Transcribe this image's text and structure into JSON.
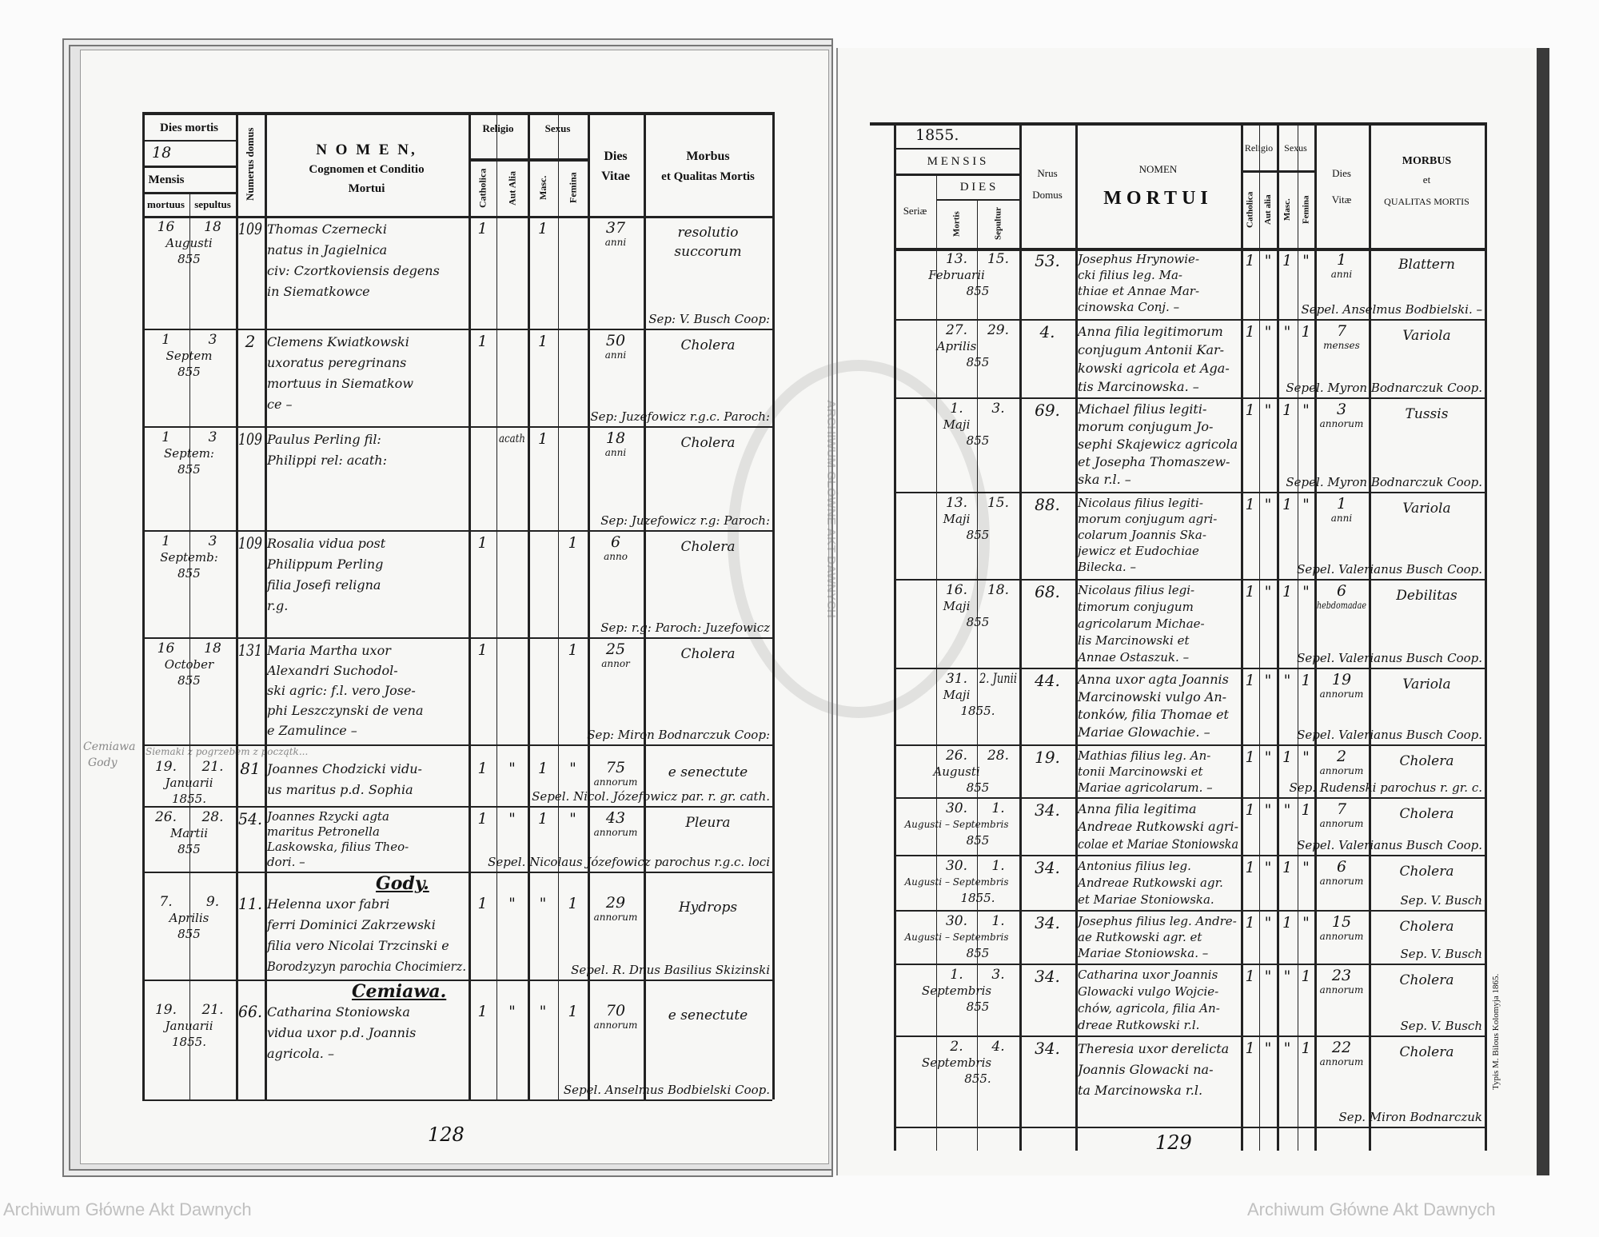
{
  "left_page": {
    "header": {
      "dies_mortis": "Dies mortis",
      "day_value": "18",
      "mensis": "Mensis",
      "mortuus": "mortuus",
      "sepultus": "sepultus",
      "numerus_domus": "Numerus domus",
      "nomen": "N O M E N,",
      "nomen_sub1": "Cognomen et Conditio",
      "nomen_sub2": "Mortui",
      "religio": "Religio",
      "catholica": "Catholica",
      "aut_alia": "Aut Alia",
      "sexus": "Sexus",
      "masc": "Masc.",
      "femina": "Femina",
      "dies_vitae_1": "Dies",
      "dies_vitae_2": "Vitae",
      "morbus_1": "Morbus",
      "morbus_2": "et Qualitas Mortis"
    },
    "margin_note": [
      "Cemiawa",
      "Gody"
    ],
    "row_note": "Siemaki z pogrzebem z początk...",
    "place_headings": {
      "gody": "Gody.",
      "cemiawa": "Cemiawa."
    },
    "rows": [
      {
        "died": "16",
        "buried": "18",
        "month": "Augusti",
        "year": "855",
        "house": "109",
        "name": [
          "Thomas Czernecki",
          "natus in Jagielnica",
          "civ: Czortkoviensis degens",
          "in Siematkowce"
        ],
        "catholica": "1",
        "aut_alia": "",
        "masc": "1",
        "femina": "",
        "age": "37",
        "age_unit": "anni",
        "disease": [
          "resolutio",
          "succorum"
        ],
        "burial": "Sep: V. Busch Coop:"
      },
      {
        "died": "1",
        "buried": "3",
        "month": "Septem",
        "year": "855",
        "house": "2",
        "name": [
          "Clemens Kwiatkowski",
          "uxoratus peregrinans",
          "mortuus in Siematkow",
          "ce –"
        ],
        "catholica": "1",
        "aut_alia": "",
        "masc": "1",
        "femina": "",
        "age": "50",
        "age_unit": "anni",
        "disease": [
          "Cholera"
        ],
        "burial": "Sep: Juzefowicz r.g.c. Paroch:"
      },
      {
        "died": "1",
        "buried": "3",
        "month": "Septem:",
        "year": "855",
        "house": "109",
        "name": [
          "Paulus Perling fil:",
          "Philippi rel: acath:"
        ],
        "catholica": "",
        "aut_alia": "acath",
        "masc": "1",
        "femina": "",
        "age": "18",
        "age_unit": "anni",
        "disease": [
          "Cholera"
        ],
        "burial": "Sep: Juzefowicz r.g: Paroch:"
      },
      {
        "died": "1",
        "buried": "3",
        "month": "Septemb:",
        "year": "855",
        "house": "109",
        "name": [
          "Rosalia vidua post",
          "Philippum Perling",
          "filia Josefi religna",
          "r.g."
        ],
        "catholica": "1",
        "aut_alia": "",
        "masc": "",
        "femina": "1",
        "age": "6",
        "age_unit": "anno",
        "disease": [
          "Cholera"
        ],
        "burial": "Sep: r.g: Paroch: Juzefowicz"
      },
      {
        "died": "16",
        "buried": "18",
        "month": "October",
        "year": "855",
        "house": "131",
        "name": [
          "Maria Martha uxor",
          "Alexandri Suchodol-",
          "ski agric: f.l. vero Jose-",
          "phi Leszczynski de vena",
          "e Zamulince –"
        ],
        "catholica": "1",
        "aut_alia": "",
        "masc": "",
        "femina": "1",
        "age": "25",
        "age_unit": "annor",
        "disease": [
          "Cholera"
        ],
        "burial": "Sep: Miron Bodnarczuk Coop:"
      },
      {
        "died": "19.",
        "buried": "21.",
        "month": "Januarii",
        "year": "1855.",
        "house": "81",
        "name": [
          "Joannes Chodzicki vidu-",
          "us maritus p.d. Sophia"
        ],
        "catholica": "1",
        "aut_alia": "\"",
        "masc": "1",
        "femina": "\"",
        "age": "75",
        "age_unit": "annorum",
        "disease": [
          "e senectute"
        ],
        "burial": "Sepel. Nicol. Józefowicz par. r. gr. cath."
      },
      {
        "died": "26.",
        "buried": "28.",
        "month": "Martii",
        "year": "855",
        "house": "54.",
        "name": [
          "Joannes Rzycki agta",
          "maritus Petronella",
          "Laskowska, filius Theo-",
          "dori. –"
        ],
        "catholica": "1",
        "aut_alia": "\"",
        "masc": "1",
        "femina": "\"",
        "age": "43",
        "age_unit": "annorum",
        "disease": [
          "Pleura"
        ],
        "burial": "Sepel. Nicolaus Józefowicz parochus r.g.c. loci"
      },
      {
        "died": "7.",
        "buried": "9.",
        "month": "Aprilis",
        "year": "855",
        "house": "11.",
        "name": [
          "Helenna uxor fabri",
          "ferri Dominici Zakrzewski",
          "filia vero Nicolai Trzcinski e",
          "Borodzyzyn parochia Chocimierz."
        ],
        "catholica": "1",
        "aut_alia": "\"",
        "masc": "\"",
        "femina": "1",
        "age": "29",
        "age_unit": "annorum",
        "disease": [
          "Hydrops"
        ],
        "burial": "Sepel. R. Dnus Basilius Skizinski"
      },
      {
        "died": "19.",
        "buried": "21.",
        "month": "Januarii",
        "year": "1855.",
        "house": "66.",
        "name": [
          "Catharina Stoniowska",
          "vidua uxor p.d. Joannis",
          "agricola. –"
        ],
        "catholica": "1",
        "aut_alia": "\"",
        "masc": "\"",
        "femina": "1",
        "age": "70",
        "age_unit": "annorum",
        "disease": [
          "e senectute"
        ],
        "burial": "Sepel. Anselmus Bodbielski Coop."
      }
    ],
    "page_number": "128"
  },
  "right_page": {
    "header": {
      "year": "1855.",
      "mensis": "M E N S I S",
      "dies": "D I E S",
      "seriae": "Seriæ",
      "mortis": "Mortis",
      "sepultur": "Sepultur",
      "nrus": "Nrus",
      "domus": "Domus",
      "nomen": "NOMEN",
      "mortui": "MORTUI",
      "religio": "Religio",
      "catholica": "Catholica",
      "aut_alia": "Aut alia",
      "sexus": "Sexus",
      "masc": "Masc.",
      "femina": "Femina",
      "dies_vitae_1": "Dies",
      "dies_vitae_2": "Vitæ",
      "morbus_1": "MORBUS",
      "morbus_2": "et",
      "morbus_3": "QUALITAS MORTIS"
    },
    "rows": [
      {
        "died": "13.",
        "buried": "15.",
        "month": "Februarii",
        "year": "855",
        "house": "53.",
        "name": [
          "Josephus Hrynowie-",
          "cki filius leg. Ma-",
          "thiae et Annae Mar-",
          "cinowska Conj. –"
        ],
        "catholica": "1",
        "aut_alia": "\"",
        "masc": "1",
        "femina": "\"",
        "age": "1",
        "age_unit": "anni",
        "disease": [
          "Blattern"
        ],
        "burial": "Sepel. Anselmus Bodbielski. –"
      },
      {
        "died": "27.",
        "buried": "29.",
        "month": "Aprilis",
        "year": "855",
        "house": "4.",
        "name": [
          "Anna filia legitimorum",
          "conjugum Antonii Kar-",
          "kowski agricola et Aga-",
          "tis Marcinowska. –"
        ],
        "catholica": "1",
        "aut_alia": "\"",
        "masc": "\"",
        "femina": "1",
        "age": "7",
        "age_unit": "menses",
        "disease": [
          "Variola"
        ],
        "burial": "Sepel. Myron Bodnarczuk Coop."
      },
      {
        "died": "1.",
        "buried": "3.",
        "month": "Maji",
        "year": "855",
        "house": "69.",
        "name": [
          "Michael filius legiti-",
          "morum conjugum Jo-",
          "sephi Skajewicz agricola",
          "et Josepha Thomaszew-",
          "ska r.l. –"
        ],
        "catholica": "1",
        "aut_alia": "\"",
        "masc": "1",
        "femina": "\"",
        "age": "3",
        "age_unit": "annorum",
        "disease": [
          "Tussis"
        ],
        "burial": "Sepel. Myron Bodnarczuk Coop."
      },
      {
        "died": "13.",
        "buried": "15.",
        "month": "Maji",
        "year": "855",
        "house": "88.",
        "name": [
          "Nicolaus filius legiti-",
          "morum conjugum agri-",
          "colarum Joannis Ska-",
          "jewicz et Eudochiae",
          "Bilecka. –"
        ],
        "catholica": "1",
        "aut_alia": "\"",
        "masc": "1",
        "femina": "\"",
        "age": "1",
        "age_unit": "anni",
        "disease": [
          "Variola"
        ],
        "burial": "Sepel. Valerianus Busch Coop."
      },
      {
        "died": "16.",
        "buried": "18.",
        "month": "Maji",
        "year": "855",
        "house": "68.",
        "name": [
          "Nicolaus filius legi-",
          "timorum conjugum",
          "agricolarum Michae-",
          "lis Marcinowski et",
          "Annae Ostaszuk. –"
        ],
        "catholica": "1",
        "aut_alia": "\"",
        "masc": "1",
        "femina": "\"",
        "age": "6",
        "age_unit": "hebdomadae",
        "disease": [
          "Debilitas"
        ],
        "burial": "Sepel. Valerianus Busch Coop."
      },
      {
        "died": "31.",
        "buried": "2. Junii",
        "month": "Maji",
        "year": "1855.",
        "house": "44.",
        "name": [
          "Anna uxor agta Joannis",
          "Marcinowski vulgo An-",
          "tonków, filia Thomae et",
          "Mariae Glowachie. –"
        ],
        "catholica": "1",
        "aut_alia": "\"",
        "masc": "\"",
        "femina": "1",
        "age": "19",
        "age_unit": "annorum",
        "disease": [
          "Variola"
        ],
        "burial": "Sepel. Valerianus Busch Coop."
      },
      {
        "died": "26.",
        "buried": "28.",
        "month": "Augusti",
        "year": "855",
        "house": "19.",
        "name": [
          "Mathias filius leg. An-",
          "tonii Marcinowski et",
          "Mariae agricolarum. –"
        ],
        "catholica": "1",
        "aut_alia": "\"",
        "masc": "1",
        "femina": "\"",
        "age": "2",
        "age_unit": "annorum",
        "disease": [
          "Cholera"
        ],
        "burial": "Sep. Rudenski parochus r. gr. c."
      },
      {
        "died": "30.",
        "buried": "1.",
        "month": "Augusti – Septembris",
        "year": "855",
        "house": "34.",
        "name": [
          "Anna filia legitima",
          "Andreae Rutkowski agri-",
          "colae et Mariae Stoniowska"
        ],
        "catholica": "1",
        "aut_alia": "\"",
        "masc": "\"",
        "femina": "1",
        "age": "7",
        "age_unit": "annorum",
        "disease": [
          "Cholera"
        ],
        "burial": "Sepel. Valerianus Busch Coop."
      },
      {
        "died": "30.",
        "buried": "1.",
        "month": "Augusti – Septembris",
        "year": "1855.",
        "house": "34.",
        "name": [
          "Antonius filius leg.",
          "Andreae Rutkowski agr.",
          "et Mariae Stoniowska."
        ],
        "catholica": "1",
        "aut_alia": "\"",
        "masc": "1",
        "femina": "\"",
        "age": "6",
        "age_unit": "annorum",
        "disease": [
          "Cholera"
        ],
        "burial": "Sep. V. Busch"
      },
      {
        "died": "30.",
        "buried": "1.",
        "month": "Augusti – Septembris",
        "year": "855",
        "house": "34.",
        "name": [
          "Josephus filius leg. Andre-",
          "ae Rutkowski agr. et",
          "Mariae Stoniowska. –"
        ],
        "catholica": "1",
        "aut_alia": "\"",
        "masc": "1",
        "femina": "\"",
        "age": "15",
        "age_unit": "annorum",
        "disease": [
          "Cholera"
        ],
        "burial": "Sep. V. Busch"
      },
      {
        "died": "1.",
        "buried": "3.",
        "month": "Septembris",
        "year": "855",
        "house": "34.",
        "name": [
          "Catharina uxor Joannis",
          "Glowacki vulgo Wojcie-",
          "chów, agricola, filia An-",
          "dreae Rutkowski r.l."
        ],
        "catholica": "1",
        "aut_alia": "\"",
        "masc": "\"",
        "femina": "1",
        "age": "23",
        "age_unit": "annorum",
        "disease": [
          "Cholera"
        ],
        "burial": "Sep. V. Busch"
      },
      {
        "died": "2.",
        "buried": "4.",
        "month": "Septembris",
        "year": "855.",
        "house": "34.",
        "name": [
          "Theresia uxor derelicta",
          "Joannis Glowacki na-",
          "ta Marcinowska r.l."
        ],
        "catholica": "1",
        "aut_alia": "\"",
        "masc": "\"",
        "femina": "1",
        "age": "22",
        "age_unit": "annorum",
        "disease": [
          "Cholera"
        ],
        "burial": "Sep. Miron Bodnarczuk"
      }
    ],
    "printer_note": "Typis M. Bilous Kolomyja 1865.",
    "page_number": "129"
  },
  "watermark": {
    "text": "Archiwum Główne Akt Dawnych",
    "seal_text": "ARCHIWUM GŁÓWNE AKT DAWNYCH"
  }
}
